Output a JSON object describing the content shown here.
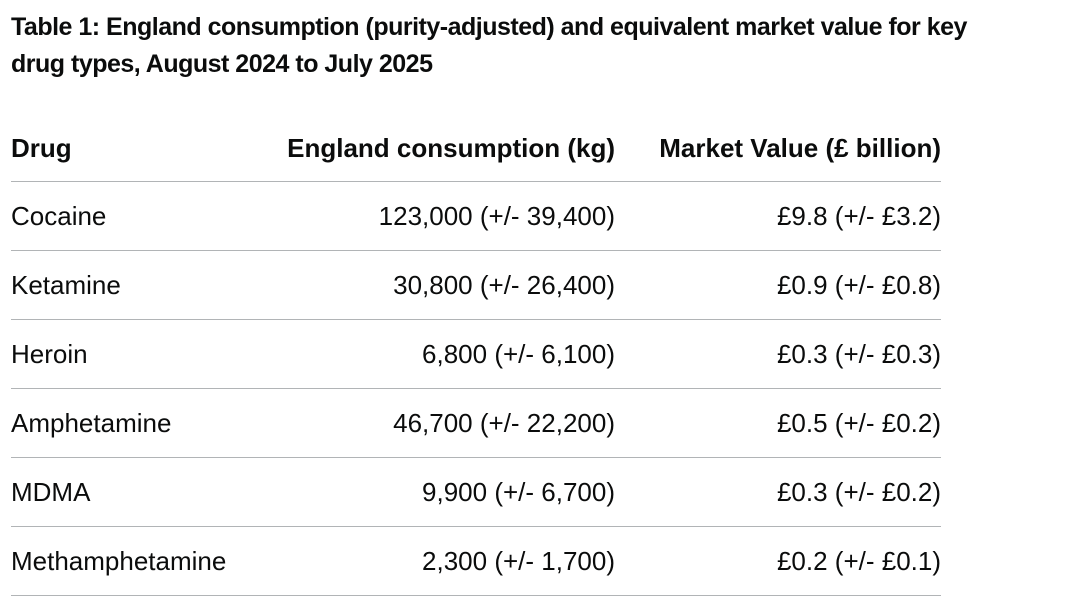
{
  "title": {
    "line1": "Table 1: England consumption (purity-adjusted) and equivalent market value for key",
    "line2": "drug types, August 2024 to July 2025"
  },
  "table": {
    "columns": [
      "Drug",
      "England consumption (kg)",
      "Market Value (£ billion)"
    ],
    "rows": [
      {
        "drug": "Cocaine",
        "consumption": "123,000 (+/- 39,400)",
        "market_value": "£9.8 (+/- £3.2)"
      },
      {
        "drug": "Ketamine",
        "consumption": "30,800 (+/- 26,400)",
        "market_value": "£0.9 (+/- £0.8)"
      },
      {
        "drug": "Heroin",
        "consumption": "6,800 (+/- 6,100)",
        "market_value": "£0.3 (+/- £0.3)"
      },
      {
        "drug": "Amphetamine",
        "consumption": "46,700 (+/- 22,200)",
        "market_value": "£0.5 (+/- £0.2)"
      },
      {
        "drug": "MDMA",
        "consumption": "9,900 (+/- 6,700)",
        "market_value": "£0.3 (+/- £0.2)"
      },
      {
        "drug": "Methamphetamine",
        "consumption": "2,300 (+/- 1,700)",
        "market_value": "£0.2 (+/- £0.1)"
      }
    ]
  },
  "colors": {
    "text": "#0b0c0c",
    "border": "#b1b4b6",
    "background": "#ffffff"
  }
}
